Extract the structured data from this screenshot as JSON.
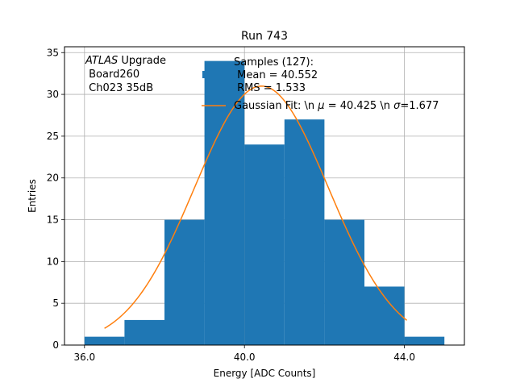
{
  "chart_data": {
    "type": "bar",
    "title": "Run 743",
    "xlabel": "Energy [ADC Counts]",
    "ylabel": "Entries",
    "xlim": [
      35.5,
      45.5
    ],
    "ylim": [
      0,
      35.7
    ],
    "xticks": [
      36.0,
      40.0,
      44.0
    ],
    "xtick_labels": [
      "36.0",
      "40.0",
      "44.0"
    ],
    "yticks": [
      0,
      5,
      10,
      15,
      20,
      25,
      30,
      35
    ],
    "grid": true,
    "histogram": {
      "bin_edges": [
        36,
        37,
        38,
        39,
        40,
        41,
        42,
        43,
        44,
        45
      ],
      "counts": [
        1,
        3,
        15,
        34,
        24,
        27,
        15,
        7,
        1
      ],
      "color": "#1f77b4"
    },
    "fit": {
      "type": "gaussian",
      "mu": 40.425,
      "sigma": 1.677,
      "amplitude": 31,
      "x_range": [
        36.5,
        44.06
      ],
      "color": "#ff7f0e"
    },
    "annotation": {
      "italic_part": "ATLAS",
      "rest": " Upgrade",
      "line2": " Board260",
      "line3": " Ch023 35dB"
    },
    "legend": {
      "placement": "top-right",
      "hist_label_line1": "Samples (127):",
      "hist_label_line2": " Mean = 40.552",
      "hist_label_line3": " RMS = 1.533",
      "fit_label_prefix": "Gaussian Fit: \\n ",
      "fit_mu_symbol": "μ",
      "fit_mu_value": " = 40.425 \\n ",
      "fit_sigma_symbol": "σ",
      "fit_sigma_value": "=1.677"
    }
  }
}
